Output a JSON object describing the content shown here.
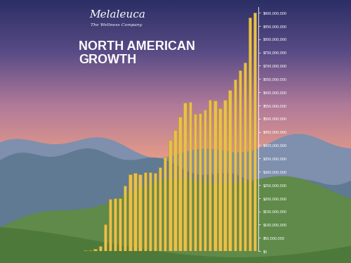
{
  "chart_data": {
    "type": "bar",
    "brand": "Melaleuca",
    "tagline": "The Wellness Company",
    "title": "NORTH AMERICAN\nGROWTH",
    "categories": [
      null,
      null,
      null,
      null,
      null,
      null,
      null,
      null,
      null,
      null,
      null,
      null,
      null,
      null,
      null,
      null,
      null,
      null,
      null,
      null,
      null,
      null,
      null,
      null,
      null,
      null,
      null,
      null,
      null,
      null,
      null,
      null,
      null,
      null,
      null,
      null
    ],
    "values": [
      1000000,
      2000000,
      4000000,
      8000000,
      20000000,
      100000000,
      196000000,
      200000000,
      200000000,
      247000000,
      290000000,
      295000000,
      290000000,
      297000000,
      297000000,
      295000000,
      316000000,
      356000000,
      420000000,
      456000000,
      507000000,
      560000000,
      563000000,
      518000000,
      520000000,
      534000000,
      571000000,
      568000000,
      539000000,
      571000000,
      608000000,
      648000000,
      682000000,
      712000000,
      881000000,
      900000000
    ],
    "color": "#e8c14a",
    "ylim": [
      0,
      920000000
    ],
    "yticks": [
      {
        "value": 0,
        "label": "$0"
      },
      {
        "value": 50000000,
        "label": "$50,000,000"
      },
      {
        "value": 100000000,
        "label": "$100,000,000"
      },
      {
        "value": 150000000,
        "label": "$150,000,000"
      },
      {
        "value": 200000000,
        "label": "$200,000,000"
      },
      {
        "value": 250000000,
        "label": "$250,000,000"
      },
      {
        "value": 300000000,
        "label": "$300,000,000"
      },
      {
        "value": 350000000,
        "label": "$350,000,000"
      },
      {
        "value": 400000000,
        "label": "$400,000,000"
      },
      {
        "value": 450000000,
        "label": "$450,000,000"
      },
      {
        "value": 500000000,
        "label": "$500,000,000"
      },
      {
        "value": 550000000,
        "label": "$550,000,000"
      },
      {
        "value": 600000000,
        "label": "$600,000,000"
      },
      {
        "value": 650000000,
        "label": "$650,000,000"
      },
      {
        "value": 700000000,
        "label": "$700,000,000"
      },
      {
        "value": 750000000,
        "label": "$750,000,000"
      },
      {
        "value": 800000000,
        "label": "$800,000,000"
      },
      {
        "value": 850000000,
        "label": "$850,000,000"
      },
      {
        "value": 900000000,
        "label": "$900,000,000"
      }
    ],
    "grid": false,
    "tick_labels": "y"
  }
}
